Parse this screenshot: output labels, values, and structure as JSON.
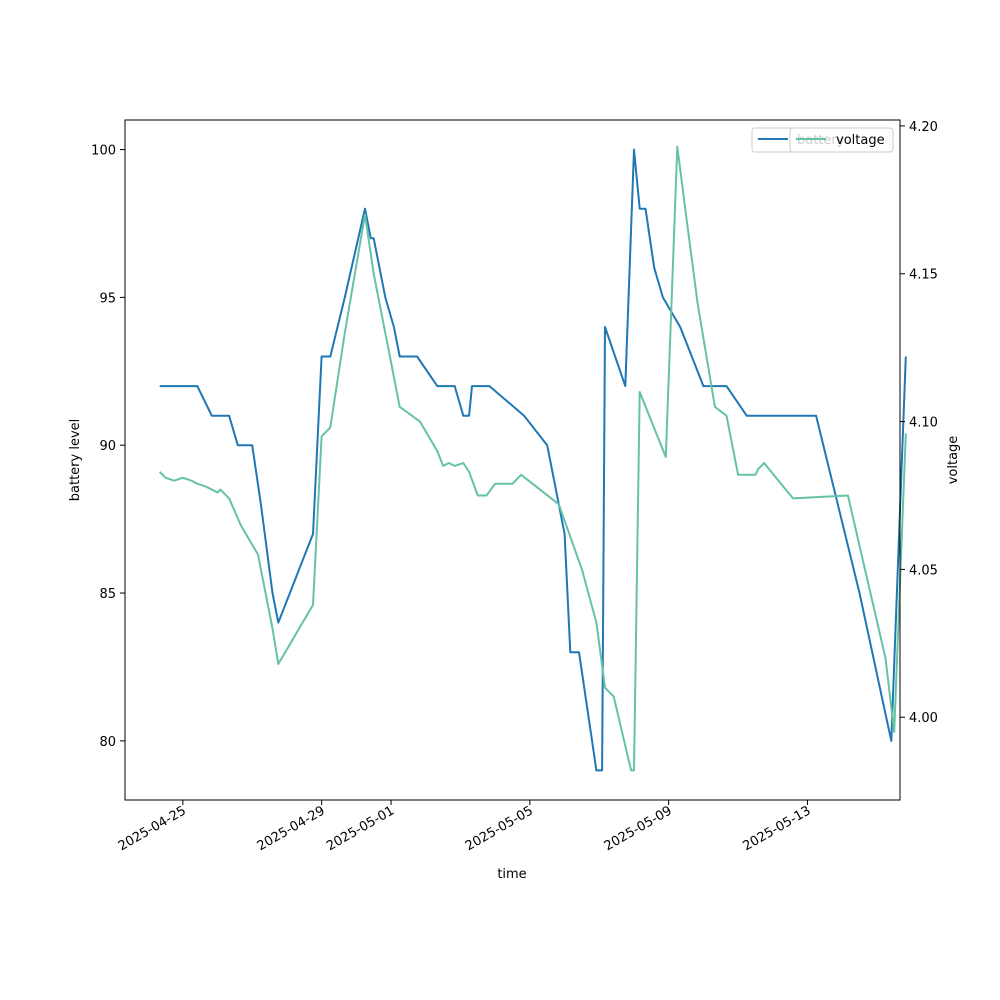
{
  "chart_data": {
    "type": "line",
    "xlabel": "time",
    "ylabel_left": "battery level",
    "ylabel_right": "voltage",
    "xlim": [
      "2025-04-23T08:00",
      "2025-05-15T16:00"
    ],
    "ylim_left": [
      78,
      101
    ],
    "ylim_right": [
      3.972,
      4.202
    ],
    "x_ticks": [
      "2025-04-25",
      "2025-04-29",
      "2025-05-01",
      "2025-05-05",
      "2025-05-09",
      "2025-05-13"
    ],
    "y_ticks_left": [
      80,
      85,
      90,
      95,
      100
    ],
    "y_ticks_right": [
      "4.00",
      "4.05",
      "4.10",
      "4.15",
      "4.20"
    ],
    "grid": false,
    "legend_position": "top-right",
    "colors": {
      "battery": "#1f77b4",
      "voltage": "#66c2a5"
    },
    "series": [
      {
        "name": "battery",
        "axis": "left",
        "points": [
          [
            "2025-04-24T08:00",
            92
          ],
          [
            "2025-04-25T10:00",
            92
          ],
          [
            "2025-04-25T20:00",
            91
          ],
          [
            "2025-04-26T08:00",
            91
          ],
          [
            "2025-04-26T14:00",
            90
          ],
          [
            "2025-04-27T00:00",
            90
          ],
          [
            "2025-04-27T06:00",
            88
          ],
          [
            "2025-04-27T14:00",
            85
          ],
          [
            "2025-04-27T18:00",
            84
          ],
          [
            "2025-04-28T18:00",
            87
          ],
          [
            "2025-04-29T00:00",
            93
          ],
          [
            "2025-04-29T06:00",
            93
          ],
          [
            "2025-04-29T16:00",
            95
          ],
          [
            "2025-04-30T06:00",
            98
          ],
          [
            "2025-04-30T10:00",
            97
          ],
          [
            "2025-04-30T12:00",
            97
          ],
          [
            "2025-04-30T20:00",
            95
          ],
          [
            "2025-05-01T02:00",
            94
          ],
          [
            "2025-05-01T06:00",
            93
          ],
          [
            "2025-05-01T18:00",
            93
          ],
          [
            "2025-05-02T08:00",
            92
          ],
          [
            "2025-05-02T20:00",
            92
          ],
          [
            "2025-05-03T02:00",
            91
          ],
          [
            "2025-05-03T06:00",
            91
          ],
          [
            "2025-05-03T08:00",
            92
          ],
          [
            "2025-05-03T20:00",
            92
          ],
          [
            "2025-05-04T20:00",
            91
          ],
          [
            "2025-05-05T12:00",
            90
          ],
          [
            "2025-05-06T00:00",
            87
          ],
          [
            "2025-05-06T04:00",
            83
          ],
          [
            "2025-05-06T10:00",
            83
          ],
          [
            "2025-05-06T22:00",
            79
          ],
          [
            "2025-05-07T02:00",
            79
          ],
          [
            "2025-05-07T04:00",
            94
          ],
          [
            "2025-05-07T18:00",
            92
          ],
          [
            "2025-05-08T00:00",
            100
          ],
          [
            "2025-05-08T04:00",
            98
          ],
          [
            "2025-05-08T08:00",
            98
          ],
          [
            "2025-05-08T14:00",
            96
          ],
          [
            "2025-05-08T20:00",
            95
          ],
          [
            "2025-05-09T08:00",
            94
          ],
          [
            "2025-05-09T16:00",
            93
          ],
          [
            "2025-05-10T00:00",
            92
          ],
          [
            "2025-05-10T16:00",
            92
          ],
          [
            "2025-05-11T06:00",
            91
          ],
          [
            "2025-05-13T06:00",
            91
          ],
          [
            "2025-05-14T12:00",
            85
          ],
          [
            "2025-05-15T10:00",
            80
          ],
          [
            "2025-05-15T20:00",
            93
          ]
        ]
      },
      {
        "name": "voltage",
        "axis": "right",
        "points": [
          [
            "2025-04-24T08:00",
            4.083
          ],
          [
            "2025-04-24T12:00",
            4.081
          ],
          [
            "2025-04-24T18:00",
            4.08
          ],
          [
            "2025-04-25T00:00",
            4.081
          ],
          [
            "2025-04-25T06:00",
            4.08
          ],
          [
            "2025-04-25T10:00",
            4.079
          ],
          [
            "2025-04-25T16:00",
            4.078
          ],
          [
            "2025-04-26T00:00",
            4.076
          ],
          [
            "2025-04-26T02:00",
            4.077
          ],
          [
            "2025-04-26T08:00",
            4.074
          ],
          [
            "2025-04-26T16:00",
            4.065
          ],
          [
            "2025-04-27T04:00",
            4.055
          ],
          [
            "2025-04-27T14:00",
            4.03
          ],
          [
            "2025-04-27T18:00",
            4.018
          ],
          [
            "2025-04-28T18:00",
            4.038
          ],
          [
            "2025-04-29T00:00",
            4.095
          ],
          [
            "2025-04-29T06:00",
            4.098
          ],
          [
            "2025-04-29T16:00",
            4.13
          ],
          [
            "2025-04-30T06:00",
            4.17
          ],
          [
            "2025-04-30T12:00",
            4.15
          ],
          [
            "2025-04-30T20:00",
            4.13
          ],
          [
            "2025-05-01T06:00",
            4.105
          ],
          [
            "2025-05-01T20:00",
            4.1
          ],
          [
            "2025-05-02T08:00",
            4.09
          ],
          [
            "2025-05-02T12:00",
            4.085
          ],
          [
            "2025-05-02T16:00",
            4.086
          ],
          [
            "2025-05-02T20:00",
            4.085
          ],
          [
            "2025-05-03T02:00",
            4.086
          ],
          [
            "2025-05-03T06:00",
            4.083
          ],
          [
            "2025-05-03T12:00",
            4.075
          ],
          [
            "2025-05-03T18:00",
            4.075
          ],
          [
            "2025-05-04T00:00",
            4.079
          ],
          [
            "2025-05-04T12:00",
            4.079
          ],
          [
            "2025-05-04T18:00",
            4.082
          ],
          [
            "2025-05-05T20:00",
            4.072
          ],
          [
            "2025-05-06T12:00",
            4.05
          ],
          [
            "2025-05-06T22:00",
            4.032
          ],
          [
            "2025-05-07T04:00",
            4.01
          ],
          [
            "2025-05-07T10:00",
            4.007
          ],
          [
            "2025-05-07T22:00",
            3.982
          ],
          [
            "2025-05-08T00:00",
            3.982
          ],
          [
            "2025-05-08T04:00",
            4.11
          ],
          [
            "2025-05-08T22:00",
            4.088
          ],
          [
            "2025-05-09T06:00",
            4.193
          ],
          [
            "2025-05-09T12:00",
            4.17
          ],
          [
            "2025-05-09T20:00",
            4.14
          ],
          [
            "2025-05-10T08:00",
            4.105
          ],
          [
            "2025-05-10T16:00",
            4.102
          ],
          [
            "2025-05-11T00:00",
            4.082
          ],
          [
            "2025-05-11T12:00",
            4.082
          ],
          [
            "2025-05-11T14:00",
            4.084
          ],
          [
            "2025-05-11T18:00",
            4.086
          ],
          [
            "2025-05-12T04:00",
            4.08
          ],
          [
            "2025-05-12T14:00",
            4.074
          ],
          [
            "2025-05-14T04:00",
            4.075
          ],
          [
            "2025-05-15T06:00",
            4.02
          ],
          [
            "2025-05-15T12:00",
            3.995
          ],
          [
            "2025-05-15T20:00",
            4.096
          ]
        ]
      }
    ]
  }
}
